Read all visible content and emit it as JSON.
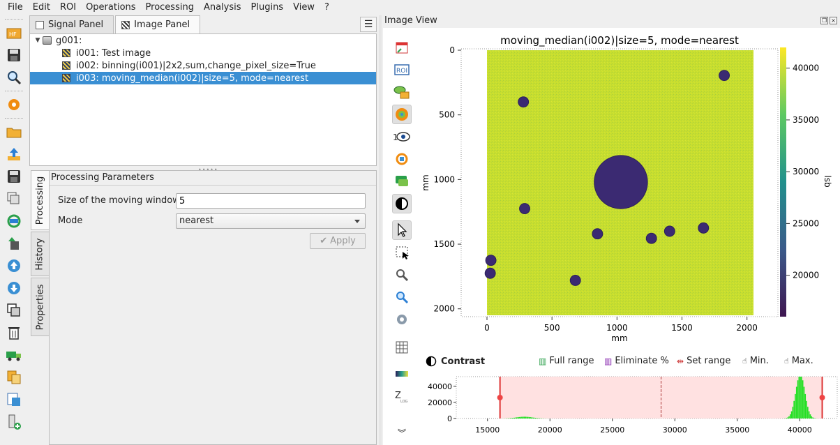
{
  "menu": [
    "File",
    "Edit",
    "ROI",
    "Operations",
    "Processing",
    "Analysis",
    "Plugins",
    "View",
    "?"
  ],
  "tabs": [
    {
      "label": "Signal Panel"
    },
    {
      "label": "Image Panel"
    }
  ],
  "tree": {
    "group": "g001:",
    "items": [
      {
        "label": "i001: Test image"
      },
      {
        "label": "i002: binning(i001)|2x2,sum,change_pixel_size=True"
      },
      {
        "label": "i003: moving_median(i002)|size=5, mode=nearest"
      }
    ]
  },
  "side_tabs": [
    "Processing",
    "History",
    "Properties"
  ],
  "processing": {
    "title": "Processing Parameters",
    "window_label": "Size of the moving window",
    "window_value": "5",
    "mode_label": "Mode",
    "mode_value": "nearest",
    "apply_label": "Apply"
  },
  "image_view": {
    "title": "Image View",
    "plot_title": "moving_median(i002)|size=5, mode=nearest",
    "xlabel": "mm",
    "ylabel": "mm",
    "colorbar_label": "lsb",
    "x_ticks": [
      "0",
      "500",
      "1000",
      "1500",
      "2000"
    ],
    "y_ticks": [
      "0",
      "500",
      "1000",
      "1500",
      "2000"
    ],
    "colorbar_ticks": [
      "40000",
      "35000",
      "30000",
      "25000",
      "20000"
    ],
    "colors": {
      "background": "#c7de2e",
      "spot": "#3b2a72",
      "spot_edge": "#2a1f5a"
    }
  },
  "contrast": {
    "title": "Contrast",
    "buttons": [
      "Full range",
      "Eliminate %",
      "Set range",
      "Min.",
      "Max."
    ],
    "y_ticks": [
      "40000",
      "20000",
      "0"
    ],
    "x_ticks": [
      "15000",
      "20000",
      "25000",
      "30000",
      "35000",
      "40000"
    ],
    "range_min": 16000,
    "range_max": 41800
  },
  "chart_data": {
    "type": "heatmap",
    "title": "moving_median(i002)|size=5, mode=nearest",
    "xlabel": "mm",
    "ylabel": "mm",
    "xlim": [
      0,
      2050
    ],
    "ylim": [
      0,
      2050
    ],
    "colorbar_range": [
      16000,
      42000
    ],
    "background_value": 40000,
    "spots": [
      {
        "x": 1030,
        "y": 1020,
        "r": 205
      },
      {
        "x": 280,
        "y": 400,
        "r": 40
      },
      {
        "x": 1825,
        "y": 195,
        "r": 40
      },
      {
        "x": 290,
        "y": 1225,
        "r": 40
      },
      {
        "x": 850,
        "y": 1420,
        "r": 40
      },
      {
        "x": 1265,
        "y": 1455,
        "r": 40
      },
      {
        "x": 1405,
        "y": 1400,
        "r": 40
      },
      {
        "x": 1665,
        "y": 1375,
        "r": 40
      },
      {
        "x": 30,
        "y": 1625,
        "r": 40
      },
      {
        "x": 25,
        "y": 1725,
        "r": 40
      },
      {
        "x": 680,
        "y": 1780,
        "r": 40
      }
    ]
  }
}
